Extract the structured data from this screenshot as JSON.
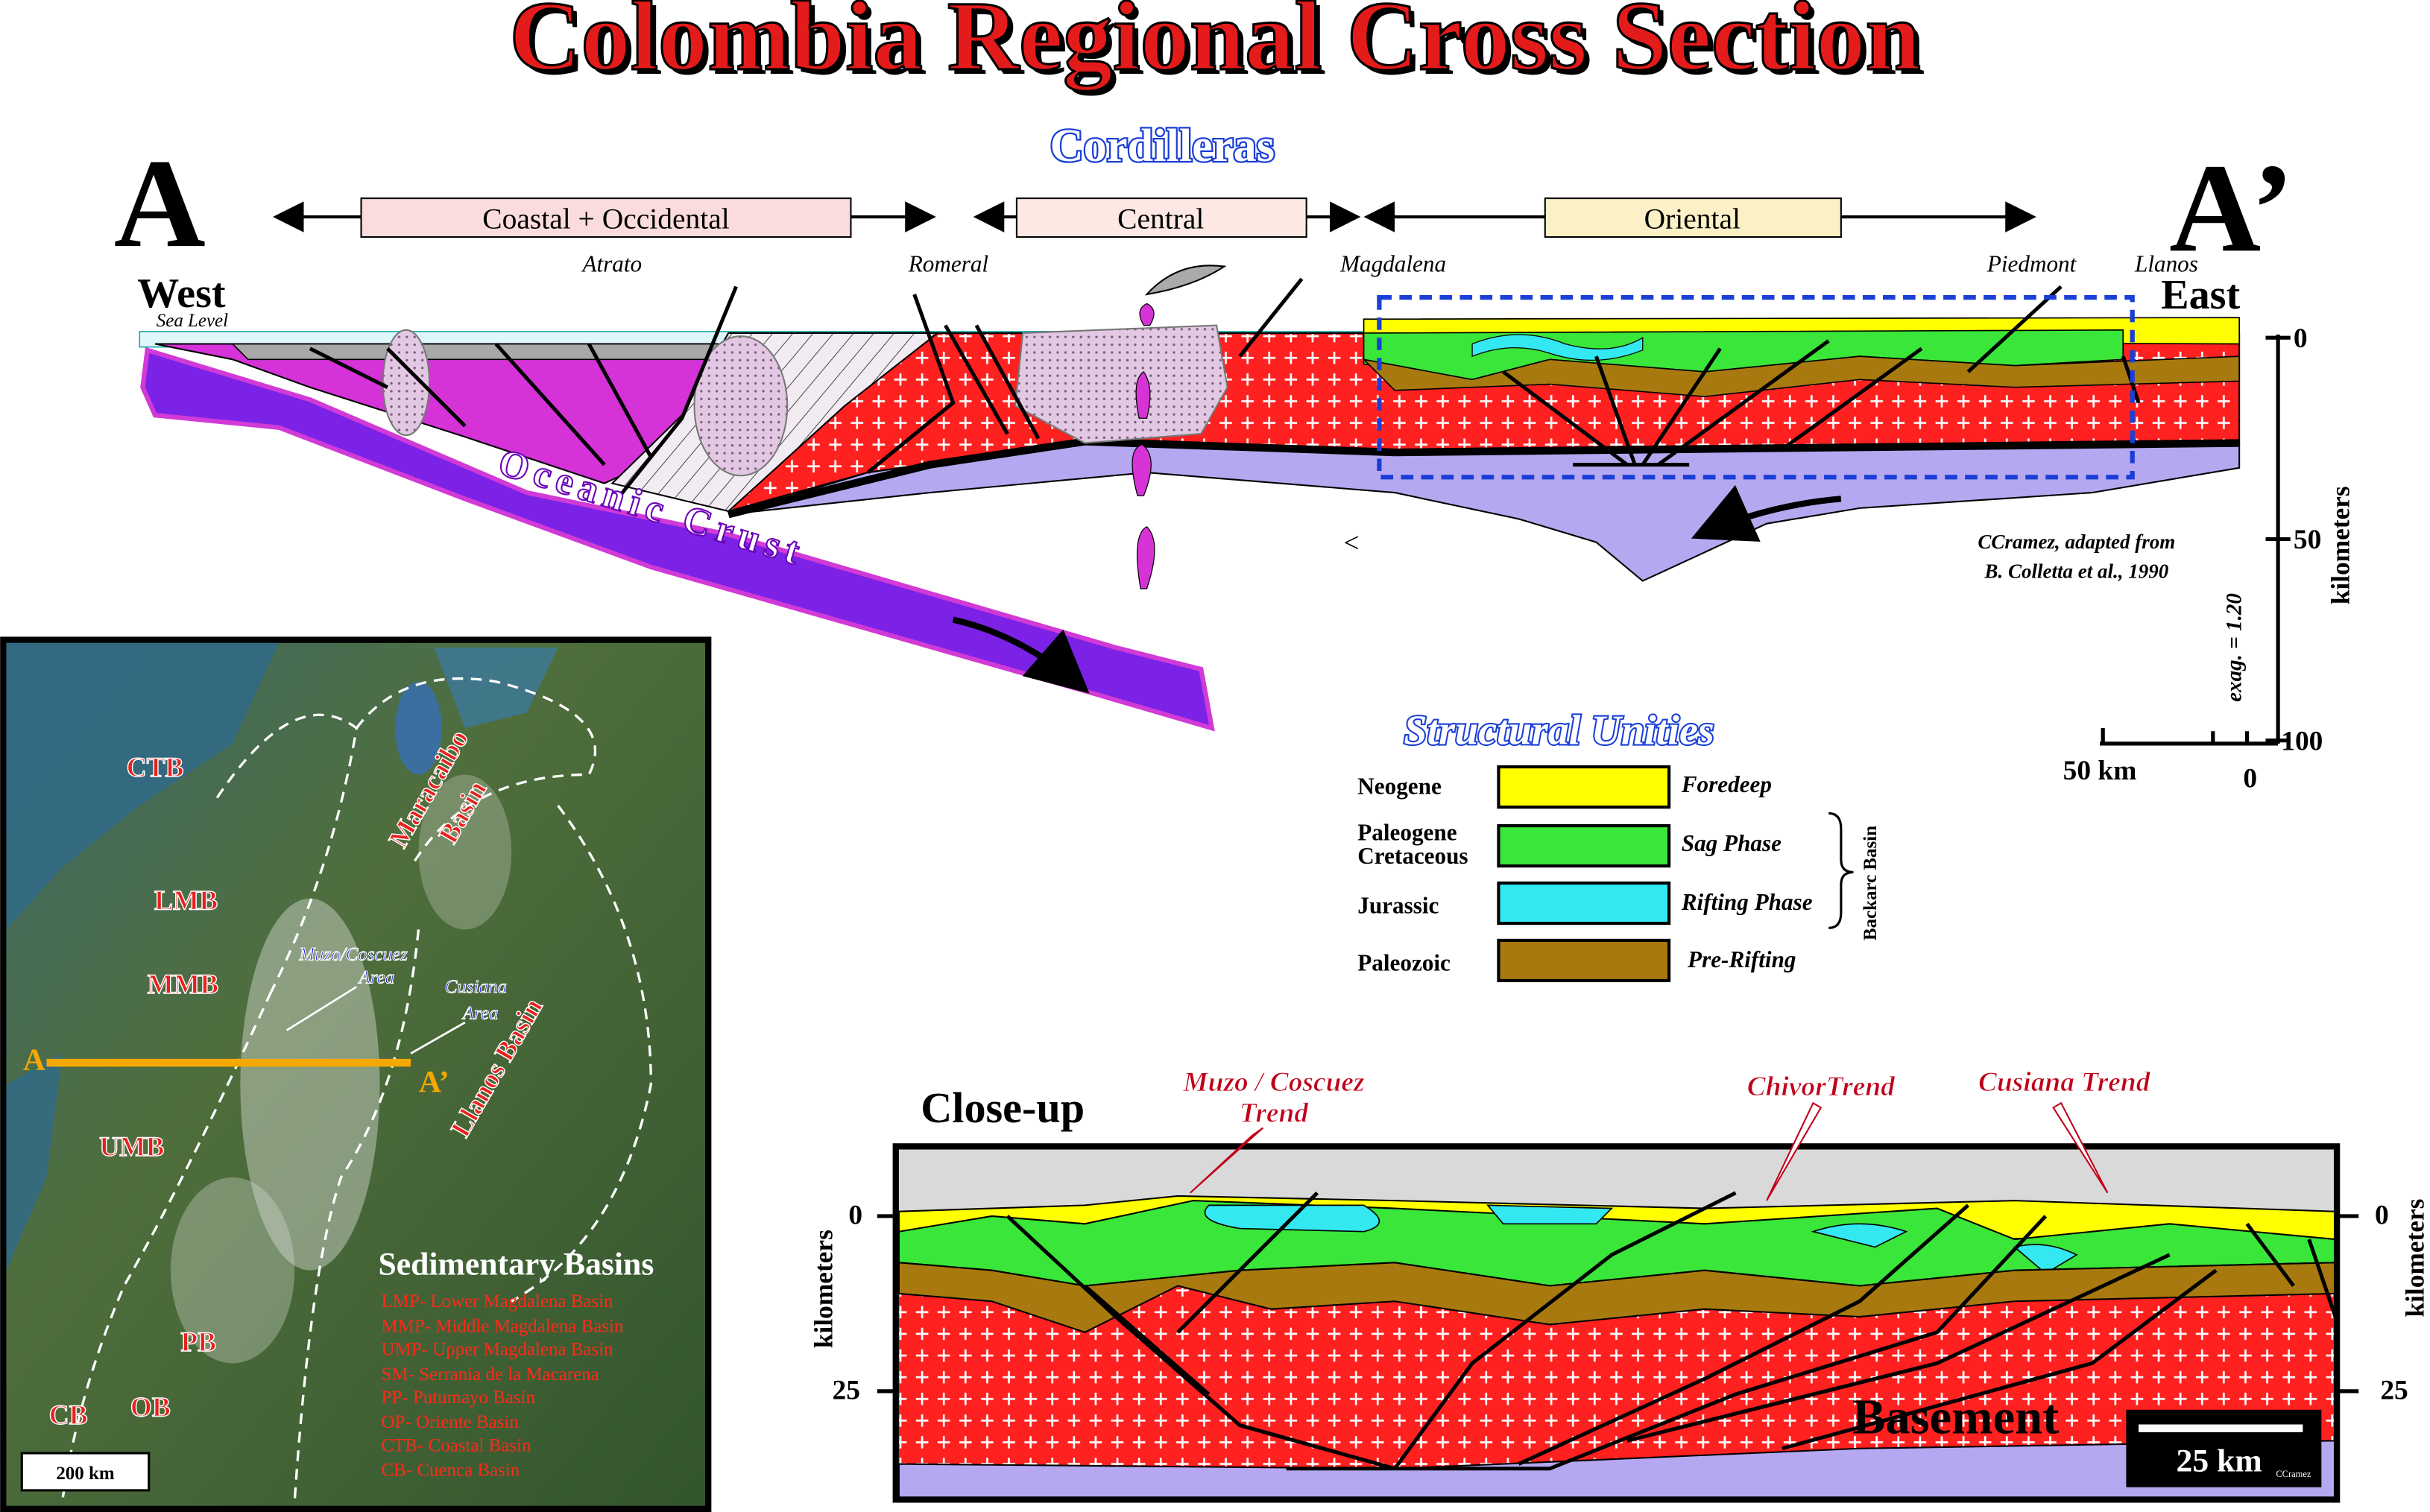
{
  "header": {
    "title": "Colombia Regional Cross Section",
    "subtitle": "Cordilleras"
  },
  "cross_section": {
    "start_label": "A",
    "end_label": "A’",
    "west": "West",
    "east": "East",
    "sea_level": "Sea Level",
    "ranges": [
      "Coastal + Occidental",
      "Central",
      "Oriental"
    ],
    "localities": [
      "Atrato",
      "Romeral",
      "Magdalena",
      "Piedmont",
      "Llanos"
    ],
    "oceanic_crust": "Oceanic Crust",
    "symbol": "<",
    "credit": [
      "CCramez, adapted from",
      "B. Colletta et al., 1990"
    ],
    "depth_axis": {
      "label": "kilometers",
      "ticks": [
        0,
        50,
        100
      ],
      "exaggeration": "exag. = 1.20"
    },
    "scale_bar": {
      "label": "50 km",
      "zero": 0
    }
  },
  "legend": {
    "title": "Structural Unities",
    "rows": [
      {
        "unit": [
          "Neogene"
        ],
        "phase": "Foredeep"
      },
      {
        "unit": [
          "Paleogene",
          "Cretaceous"
        ],
        "phase": "Sag Phase"
      },
      {
        "unit": [
          "Jurassic"
        ],
        "phase": "Rifting Phase"
      },
      {
        "unit": [
          "Paleozoic"
        ],
        "phase": "Pre-Rifting"
      }
    ],
    "group": "Backarc Basin"
  },
  "map": {
    "basin_labels": [
      "CTB",
      "LMB",
      "MMB",
      "UMB",
      "PB",
      "CB",
      "OB",
      [
        "Maracaibo",
        "Basin"
      ],
      "Llanos Basin"
    ],
    "areas": [
      [
        "Muzo/Coscuez",
        "Area"
      ],
      [
        "Cusiana",
        "Area"
      ]
    ],
    "section_start": "A",
    "section_end": "A’",
    "key_title": "Sedimentary Basins",
    "key": [
      "LMP- Lower Magdalena Basin",
      "MMP- Middle Magdalena Basin",
      "UMP- Upper Magdalena Basin",
      "SM- Serrania de la Macarena",
      "PP- Putumayo Basin",
      "OP- Oriente Basin",
      "CTB- Coastal Basin",
      "CB- Cuenca Basin"
    ],
    "scale": "200 km"
  },
  "close_up": {
    "title": "Close-up",
    "trends": [
      [
        "Muzo / Coscuez",
        "Trend"
      ],
      [
        "ChivorTrend"
      ],
      [
        "Cusiana Trend"
      ]
    ],
    "basement": "Basement",
    "depth_label": "kilometers",
    "ticks": [
      0,
      25
    ],
    "scale_bar": "25 km",
    "credit": "CCramez"
  }
}
